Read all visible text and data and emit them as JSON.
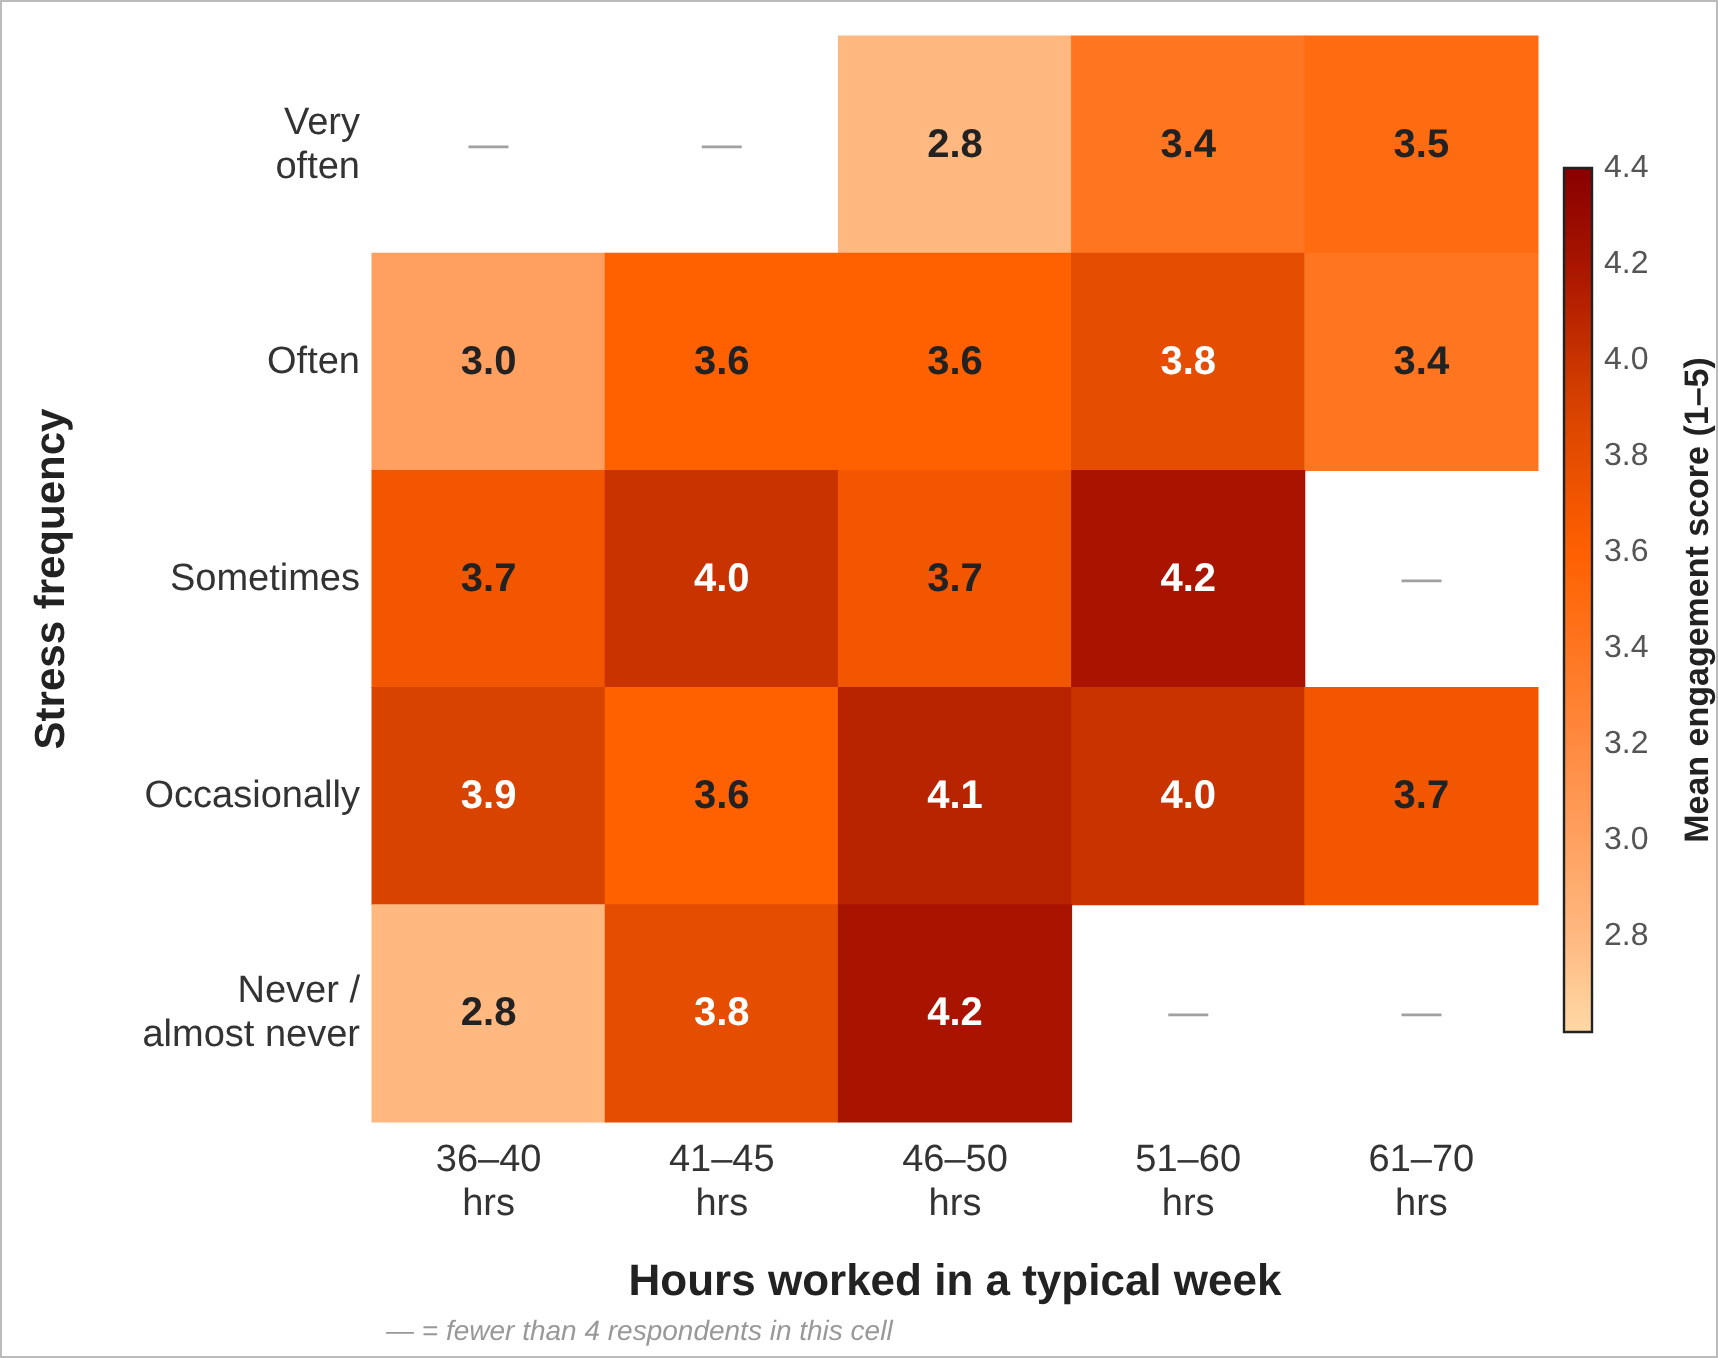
{
  "chart_data": {
    "type": "heatmap",
    "xlabel": "Hours worked in a typical week",
    "ylabel": "Stress frequency",
    "clabel": "Mean engagement score (1–5)",
    "categories": [
      "36–40 hrs",
      "41–45 hrs",
      "46–50 hrs",
      "51–60 hrs",
      "61–70 hrs"
    ],
    "y_categories": [
      "Very often",
      "Often",
      "Sometimes",
      "Occasionally",
      "Never / almost never"
    ],
    "cells": [
      [
        null,
        null,
        2.8,
        3.4,
        3.5
      ],
      [
        3.0,
        3.6,
        3.6,
        3.8,
        3.4
      ],
      [
        3.7,
        4.0,
        3.7,
        4.2,
        null
      ],
      [
        3.9,
        3.6,
        4.1,
        4.0,
        3.7
      ],
      [
        2.8,
        3.8,
        4.2,
        null,
        null
      ]
    ],
    "cell_labels": [
      [
        "—",
        "—",
        "2.8",
        "3.4",
        "3.5"
      ],
      [
        "3.0",
        "3.6",
        "3.6",
        "3.8",
        "3.4"
      ],
      [
        "3.7",
        "4.0",
        "3.7",
        "4.2",
        "—"
      ],
      [
        "3.9",
        "3.6",
        "4.1",
        "4.0",
        "3.7"
      ],
      [
        "2.8",
        "3.8",
        "4.2",
        "—",
        "—"
      ]
    ],
    "clim": [
      2.6,
      4.4
    ],
    "cticks": [
      {
        "value": 4.4,
        "label": "4.4"
      },
      {
        "value": 4.2,
        "label": "4.2"
      },
      {
        "value": 4,
        "label": "4.0"
      },
      {
        "value": 3.8,
        "label": "3.8"
      },
      {
        "value": 3.6,
        "label": "3.6"
      },
      {
        "value": 3.4,
        "label": "3.4"
      },
      {
        "value": 3.2,
        "label": "3.2"
      },
      {
        "value": 3,
        "label": "3.0"
      },
      {
        "value": 2.8,
        "label": "2.8"
      }
    ],
    "annotations": [
      "— = fewer than 4 respondents in this cell"
    ]
  }
}
